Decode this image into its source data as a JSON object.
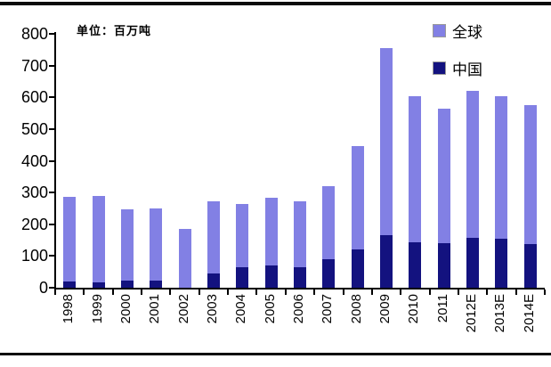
{
  "unit_label": "单位：百万吨",
  "legend": {
    "items": [
      {
        "label": "全球",
        "color": "#8280E4"
      },
      {
        "label": "中国",
        "color": "#13127F"
      }
    ]
  },
  "chart_data": {
    "type": "bar",
    "stacked": true,
    "title": "",
    "xlabel": "",
    "ylabel": "百万吨",
    "ylim": [
      0,
      800
    ],
    "ytick_step": 100,
    "grid": false,
    "legend_position": "top-right",
    "categories": [
      "1998",
      "1999",
      "2000",
      "2001",
      "2002",
      "2003",
      "2004",
      "2005",
      "2006",
      "2007",
      "2008",
      "2009",
      "2010",
      "2011",
      "2012E",
      "2013E",
      "2014E"
    ],
    "series": [
      {
        "name": "全球",
        "color": "#8280E4",
        "role": "total-bar-height",
        "values": [
          285,
          290,
          246,
          251,
          186,
          271,
          263,
          283,
          271,
          320,
          446,
          756,
          604,
          565,
          620,
          604,
          576
        ]
      },
      {
        "name": "中国",
        "color": "#13127F",
        "role": "bottom-segment",
        "values": [
          20,
          18,
          22,
          22,
          0,
          45,
          65,
          70,
          65,
          90,
          120,
          165,
          142,
          140,
          157,
          155,
          138
        ]
      }
    ],
    "note": "全球 values are total bar heights; 中国 segment is drawn at the bottom of each bar"
  }
}
